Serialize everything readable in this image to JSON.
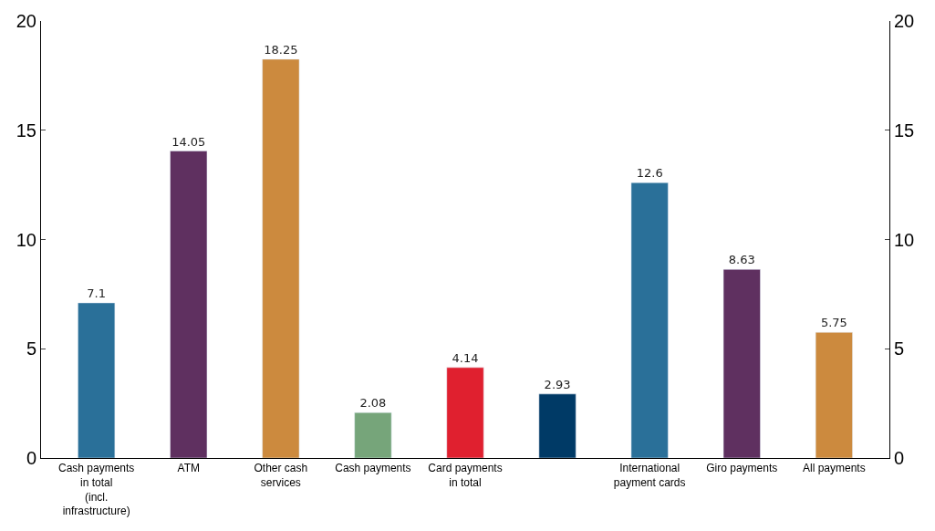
{
  "chart_data": {
    "type": "bar",
    "categories": [
      "Cash payments in total (incl. infrastructure)",
      "ATM",
      "Other cash services",
      "Cash payments",
      "Card payments in total",
      null,
      "International payment cards",
      "Giro payments",
      "All payments"
    ],
    "values": [
      7.1,
      14.05,
      18.25,
      2.08,
      4.14,
      2.93,
      12.6,
      8.63,
      5.75
    ],
    "colors": [
      "#2a7099",
      "#5f3060",
      "#cc8a3e",
      "#76a57a",
      "#e0202f",
      "#003a66",
      "#2a7099",
      "#5f3060",
      "#cc8a3e"
    ],
    "ylim": [
      0,
      20
    ],
    "yticks": [
      0,
      5,
      10,
      15,
      20
    ],
    "y2lim": [
      0,
      20
    ],
    "y2ticks": [
      0,
      5,
      10,
      15,
      20
    ],
    "data_labels": true
  }
}
